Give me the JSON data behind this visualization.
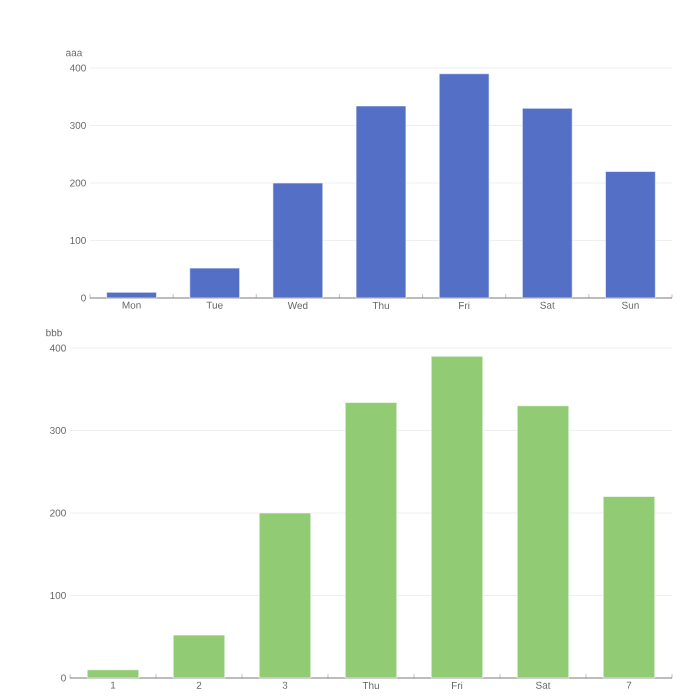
{
  "chart_data": [
    {
      "type": "bar",
      "ylabel": "aaa",
      "categories": [
        "Mon",
        "Tue",
        "Wed",
        "Thu",
        "Fri",
        "Sat",
        "Sun"
      ],
      "values": [
        10,
        52,
        200,
        334,
        390,
        330,
        220
      ],
      "color": "#5470c6",
      "ylim": [
        0,
        400
      ],
      "yticks": [
        0,
        100,
        200,
        300,
        400
      ],
      "grid": "y"
    },
    {
      "type": "bar",
      "ylabel": "bbb",
      "categories": [
        "1",
        "2",
        "3",
        "Thu",
        "Fri",
        "Sat",
        "7"
      ],
      "values": [
        10,
        52,
        200,
        334,
        390,
        330,
        220
      ],
      "color": "#91cc75",
      "ylim": [
        0,
        400
      ],
      "yticks": [
        0,
        100,
        200,
        300,
        400
      ],
      "grid": "y"
    }
  ]
}
